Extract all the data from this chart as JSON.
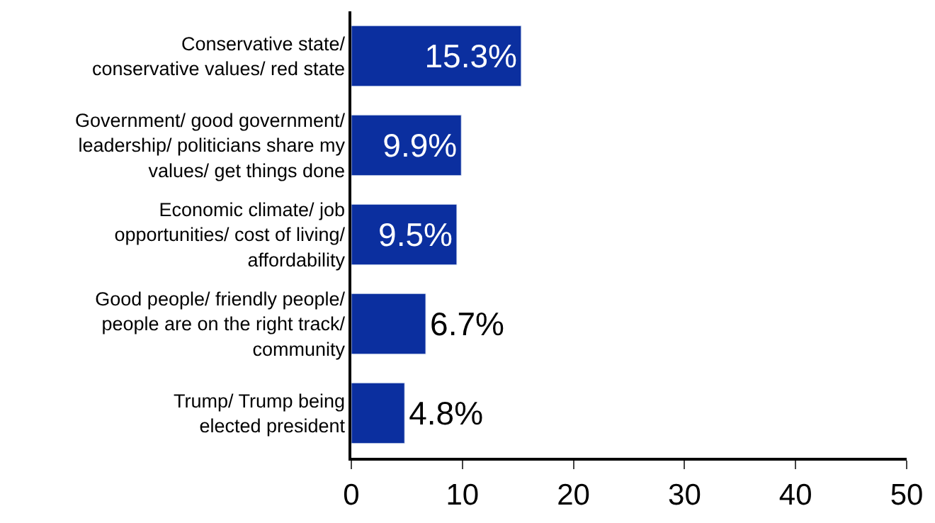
{
  "chart_data": {
    "type": "bar",
    "orientation": "horizontal",
    "categories": [
      "Conservative state/\nconservative values/ red state",
      "Government/ good government/\nleadership/ politicians share my\nvalues/ get things done",
      "Economic climate/ job\nopportunities/ cost of living/\naffordability",
      "Good people/ friendly people/\npeople are on the right track/\ncommunity",
      "Trump/ Trump being\nelected president"
    ],
    "series": [
      {
        "color": "#0b2f9f",
        "values": [
          15.3,
          9.9,
          9.5,
          6.7,
          4.8
        ],
        "value_labels": [
          "15.3%",
          "9.9%",
          "9.5%",
          "6.7%",
          "4.8%"
        ]
      }
    ],
    "xlim": [
      0,
      50
    ],
    "xticks": [
      0,
      10,
      20,
      30,
      40,
      50
    ]
  }
}
